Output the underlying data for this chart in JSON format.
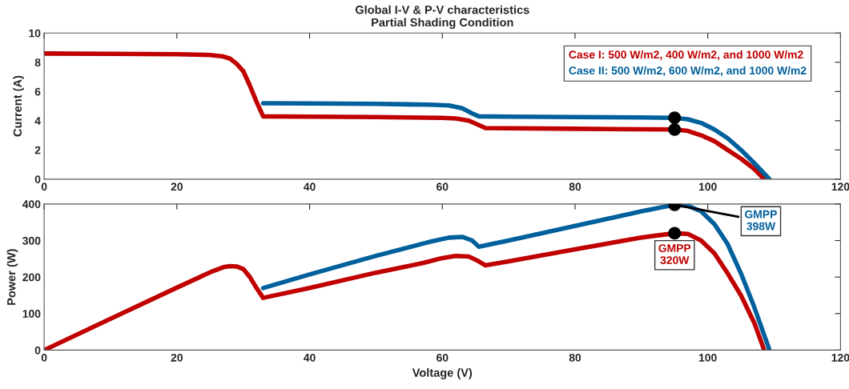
{
  "chart_data": [
    {
      "type": "line",
      "title": "Global I-V & P-V characteristics",
      "subtitle": "Partial Shading Condition",
      "ylabel": "Current (A)",
      "xlim": [
        0,
        120
      ],
      "xticks": [
        0,
        20,
        40,
        60,
        80,
        100,
        120
      ],
      "ylim": [
        0,
        10
      ],
      "yticks": [
        0,
        2,
        4,
        6,
        8,
        10
      ],
      "grid": false,
      "legend": "top right",
      "series": [
        {
          "name": "Case I: 500 W/m2, 400 W/m2, and 1000 W/m2",
          "color": "#c00000",
          "x": [
            0,
            10,
            20,
            25,
            27,
            28,
            29,
            30,
            31,
            32,
            33,
            40,
            50,
            60,
            62,
            64,
            65.5,
            66.5,
            70,
            80,
            90,
            95,
            97,
            99,
            101,
            103,
            105,
            107,
            108.5
          ],
          "values": [
            8.6,
            8.58,
            8.55,
            8.5,
            8.4,
            8.25,
            7.9,
            7.4,
            6.4,
            5.3,
            4.3,
            4.28,
            4.25,
            4.2,
            4.15,
            4.0,
            3.7,
            3.5,
            3.48,
            3.45,
            3.42,
            3.4,
            3.3,
            3.0,
            2.6,
            2.0,
            1.4,
            0.7,
            0
          ]
        },
        {
          "name": "Case II: 500 W/m2, 600 W/m2, and 1000 W/m2",
          "color": "#00609c",
          "x": [
            33,
            40,
            50,
            58,
            61,
            63,
            64.5,
            65.5,
            70,
            80,
            90,
            95,
            97,
            99,
            101,
            103,
            105,
            107,
            109.3
          ],
          "values": [
            5.2,
            5.18,
            5.15,
            5.1,
            5.05,
            4.85,
            4.5,
            4.3,
            4.28,
            4.25,
            4.22,
            4.2,
            4.1,
            3.85,
            3.4,
            2.8,
            2.0,
            1.1,
            0
          ]
        },
        {
          "type": "scatter",
          "color": "#000000",
          "marker": "circle",
          "x": [
            95,
            95
          ],
          "values": [
            4.2,
            3.4
          ]
        }
      ]
    },
    {
      "type": "line",
      "xlabel": "Voltage (V)",
      "ylabel": "Power (W)",
      "xlim": [
        0,
        120
      ],
      "xticks": [
        0,
        20,
        40,
        60,
        80,
        100,
        120
      ],
      "ylim": [
        0,
        400
      ],
      "yticks": [
        0,
        100,
        200,
        300,
        400
      ],
      "grid": false,
      "annotations": [
        {
          "text": "GMPP\n398W",
          "x": 95,
          "y": 398
        },
        {
          "text": "GMPP\n320W",
          "x": 95,
          "y": 320
        }
      ],
      "series": [
        {
          "color": "#c00000",
          "x": [
            0,
            10,
            20,
            25,
            27,
            28,
            29,
            30,
            31,
            32,
            33,
            40,
            50,
            57,
            60,
            62,
            64,
            65.5,
            66.5,
            70,
            80,
            90,
            95,
            97,
            99,
            101,
            103,
            105,
            107,
            108.5
          ],
          "values": [
            0,
            86,
            171,
            213,
            227,
            230,
            229,
            222,
            200,
            170,
            143,
            170,
            212,
            238,
            252,
            258,
            256,
            243,
            232,
            243,
            276,
            308,
            320,
            318,
            300,
            265,
            210,
            150,
            75,
            0
          ]
        },
        {
          "color": "#00609c",
          "x": [
            33,
            40,
            50,
            58,
            61,
            63,
            64.5,
            65.5,
            70,
            80,
            90,
            95,
            97,
            99,
            101,
            103,
            105,
            107,
            109.3
          ],
          "values": [
            170,
            207,
            258,
            296,
            308,
            310,
            300,
            283,
            300,
            340,
            380,
            398,
            395,
            380,
            345,
            290,
            210,
            118,
            0
          ]
        },
        {
          "type": "scatter",
          "color": "#000000",
          "marker": "circle",
          "x": [
            95,
            95
          ],
          "values": [
            398,
            320
          ]
        }
      ]
    }
  ]
}
